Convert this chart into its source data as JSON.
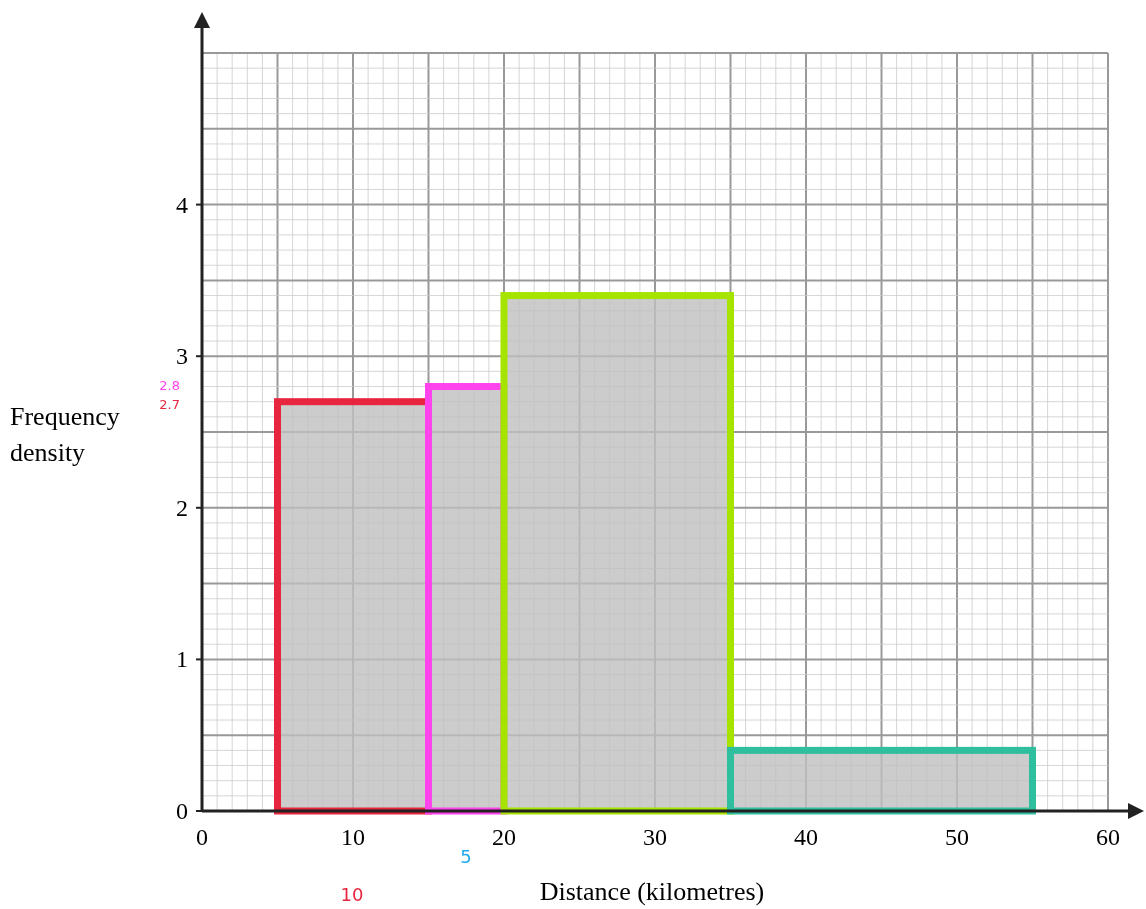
{
  "chart_data": {
    "type": "histogram",
    "xlabel": "Distance (kilometres)",
    "ylabel": "Frequency density",
    "bins": [
      5,
      15,
      20,
      35,
      55
    ],
    "values": [
      2.7,
      2.8,
      3.4,
      0.4
    ],
    "colors": [
      "#e8253f",
      "#ff44ee",
      "#a6e400",
      "#2fbf9f"
    ],
    "xlim": [
      0,
      60
    ],
    "xticks": [
      0,
      10,
      20,
      30,
      40,
      50,
      60
    ],
    "ylim": [
      0,
      5
    ],
    "yticks": [
      0,
      1,
      2,
      3,
      4
    ],
    "grid": true,
    "annotations": [
      "2.8",
      "2.7",
      "5",
      "10"
    ]
  }
}
